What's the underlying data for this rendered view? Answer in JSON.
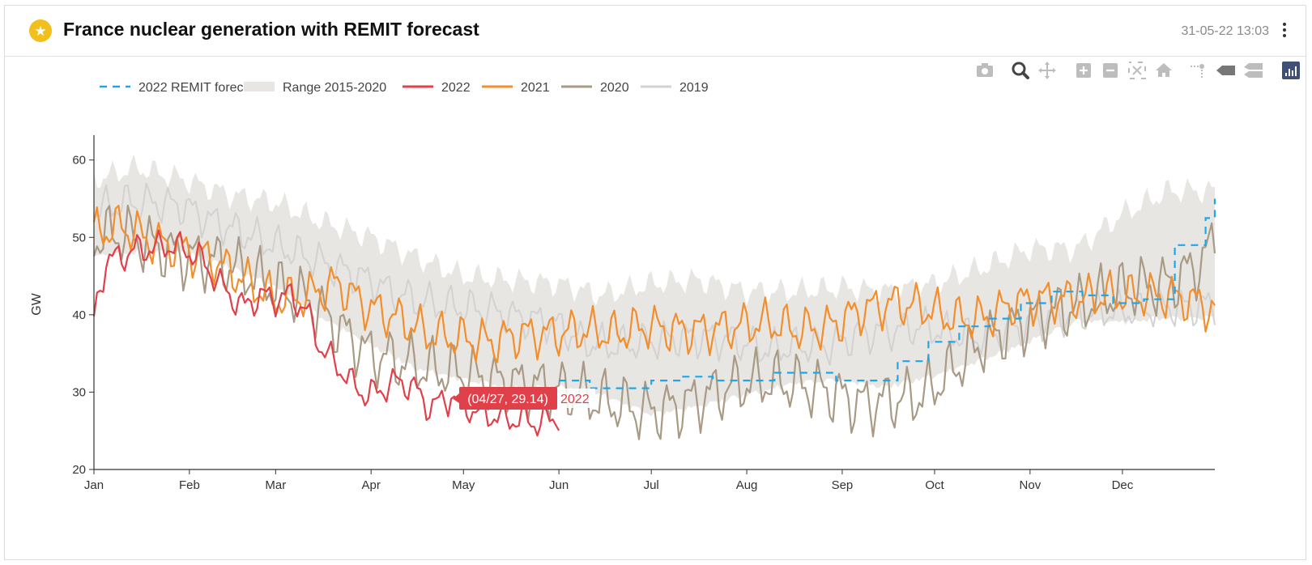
{
  "header": {
    "icon": "star-icon",
    "title": "France nuclear generation with REMIT forecast",
    "timestamp": "31-05-22 13:03",
    "menu_icon": "more-vertical-icon"
  },
  "modebar": {
    "buttons": [
      {
        "name": "camera-icon",
        "label": "Download plot as a png"
      },
      {
        "name": "zoom-icon",
        "label": "Zoom",
        "active": true
      },
      {
        "name": "pan-icon",
        "label": "Pan"
      },
      {
        "name": "zoom-in-icon",
        "label": "Zoom in"
      },
      {
        "name": "zoom-out-icon",
        "label": "Zoom out"
      },
      {
        "name": "autoscale-icon",
        "label": "Autoscale"
      },
      {
        "name": "home-icon",
        "label": "Reset axes"
      },
      {
        "name": "spike-lines-icon",
        "label": "Toggle Spike Lines"
      },
      {
        "name": "hover-closest-icon",
        "label": "Show closest data on hover"
      },
      {
        "name": "hover-compare-icon",
        "label": "Compare data on hover"
      },
      {
        "name": "plotly-logo-icon",
        "label": "Produced with Plotly"
      }
    ]
  },
  "colors": {
    "forecast": "#1ea7e8",
    "range": "#e8e6e2",
    "y2022": "#e0404a",
    "y2021": "#f28e2b",
    "y2020": "#a89a85",
    "y2019": "#d2d2d2"
  },
  "chart_data": {
    "type": "line",
    "title": "France nuclear generation with REMIT forecast",
    "xlabel": "",
    "ylabel": "GW",
    "ylim": [
      20,
      63
    ],
    "xlim": [
      1,
      365
    ],
    "y_ticks": [
      20,
      30,
      40,
      50,
      60
    ],
    "x_tick_days": [
      1,
      32,
      60,
      91,
      121,
      152,
      182,
      213,
      244,
      274,
      305,
      335
    ],
    "x_tick_labels": [
      "Jan",
      "Feb",
      "Mar",
      "Apr",
      "May",
      "Jun",
      "Jul",
      "Aug",
      "Sep",
      "Oct",
      "Nov",
      "Dec"
    ],
    "legend_position": "top-left",
    "legend": [
      "2022 REMIT forecast",
      "Range 2015-2020",
      "2022",
      "2021",
      "2020",
      "2019"
    ],
    "hover": {
      "text": "(04/27, 29.14)",
      "series": "2022",
      "day": 117,
      "value": 29.14
    },
    "series": [
      {
        "name": "2022 REMIT forecast",
        "key": "forecast",
        "style": "dash",
        "x": [
          152,
          162,
          172,
          182,
          192,
          202,
          212,
          222,
          232,
          242,
          252,
          262,
          272,
          282,
          292,
          302,
          312,
          322,
          332,
          342,
          352,
          362,
          365
        ],
        "values": [
          31.5,
          30.5,
          30.5,
          31.5,
          32.0,
          31.5,
          31.5,
          32.5,
          32.5,
          31.5,
          31.5,
          34.0,
          36.5,
          38.5,
          39.5,
          41.5,
          43.0,
          42.5,
          41.5,
          42.0,
          49.0,
          52.5,
          55.0
        ]
      },
      {
        "name": "Range 2015-2020",
        "key": "range",
        "type": "band",
        "x": [
          1,
          15,
          30,
          45,
          60,
          75,
          91,
          105,
          121,
          136,
          152,
          166,
          182,
          197,
          213,
          228,
          244,
          258,
          274,
          289,
          305,
          320,
          335,
          350,
          365
        ],
        "upper": [
          57.5,
          59.0,
          57.5,
          55.5,
          54.5,
          52.0,
          50.0,
          47.5,
          45.0,
          44.5,
          44.0,
          42.5,
          44.0,
          44.5,
          43.0,
          43.0,
          43.5,
          43.0,
          44.0,
          46.0,
          48.5,
          48.5,
          53.0,
          56.0,
          56.0
        ],
        "lower": [
          48.0,
          48.5,
          48.5,
          46.5,
          44.0,
          40.0,
          36.5,
          33.5,
          32.0,
          31.0,
          31.0,
          30.0,
          27.5,
          28.5,
          30.0,
          31.5,
          32.0,
          31.0,
          32.5,
          34.5,
          37.0,
          39.5,
          39.5,
          40.0,
          40.0
        ]
      },
      {
        "name": "2022",
        "key": "y2022",
        "x": [
          1,
          5,
          10,
          15,
          20,
          25,
          30,
          35,
          40,
          45,
          50,
          55,
          60,
          65,
          70,
          75,
          80,
          85,
          90,
          95,
          100,
          105,
          110,
          115,
          117,
          120,
          125,
          130,
          135,
          140,
          145,
          150,
          152
        ],
        "values": [
          39.8,
          47.0,
          47.5,
          48.5,
          48.5,
          49.0,
          48.5,
          47.5,
          45.0,
          42.5,
          41.0,
          42.5,
          42.0,
          42.5,
          40.5,
          35.5,
          33.5,
          31.0,
          29.5,
          30.5,
          31.5,
          30.5,
          28.0,
          29.0,
          29.14,
          28.5,
          27.5,
          27.0,
          26.5,
          26.5,
          26.0,
          26.5,
          27.0
        ]
      },
      {
        "name": "2021",
        "key": "y2021",
        "x": [
          1,
          10,
          20,
          30,
          40,
          50,
          60,
          70,
          80,
          90,
          100,
          110,
          120,
          130,
          140,
          150,
          160,
          170,
          180,
          190,
          200,
          210,
          220,
          230,
          240,
          250,
          260,
          270,
          280,
          290,
          300,
          310,
          320,
          330,
          340,
          350,
          360,
          365
        ],
        "values": [
          50.5,
          51.5,
          49.5,
          48.5,
          47.0,
          44.5,
          42.0,
          42.5,
          44.0,
          41.0,
          39.5,
          37.5,
          37.0,
          36.5,
          37.5,
          37.5,
          38.0,
          37.5,
          38.5,
          38.0,
          38.0,
          38.5,
          39.0,
          38.0,
          38.5,
          40.5,
          41.5,
          41.0,
          39.5,
          39.5,
          41.5,
          42.0,
          42.0,
          42.5,
          42.5,
          42.5,
          41.5,
          40.5
        ]
      },
      {
        "name": "2020",
        "key": "y2020",
        "x": [
          1,
          10,
          20,
          30,
          40,
          50,
          60,
          70,
          80,
          90,
          100,
          110,
          120,
          130,
          140,
          150,
          160,
          170,
          180,
          190,
          200,
          210,
          220,
          230,
          240,
          250,
          260,
          270,
          280,
          290,
          300,
          310,
          320,
          330,
          340,
          350,
          360,
          365
        ],
        "values": [
          50.0,
          50.5,
          49.0,
          47.5,
          47.0,
          45.5,
          43.5,
          42.0,
          38.5,
          35.0,
          34.0,
          33.0,
          32.5,
          31.5,
          31.0,
          30.5,
          29.5,
          28.5,
          27.5,
          28.0,
          29.5,
          31.0,
          31.5,
          31.0,
          30.0,
          28.5,
          29.0,
          29.5,
          33.0,
          36.5,
          38.5,
          40.0,
          41.0,
          42.5,
          43.5,
          44.0,
          46.5,
          49.5
        ]
      },
      {
        "name": "2019",
        "key": "y2019",
        "x": [
          1,
          10,
          20,
          30,
          40,
          50,
          60,
          70,
          80,
          90,
          100,
          110,
          120,
          130,
          140,
          150,
          160,
          170,
          180,
          190,
          200,
          210,
          220,
          230,
          240,
          250,
          260,
          270,
          280,
          290,
          300,
          310,
          320,
          330,
          340,
          350,
          360,
          365
        ],
        "values": [
          53.5,
          54.5,
          54.5,
          54.0,
          52.0,
          50.5,
          49.0,
          47.5,
          46.0,
          44.5,
          42.5,
          41.5,
          41.0,
          40.5,
          39.5,
          39.0,
          36.5,
          36.0,
          36.5,
          37.0,
          37.0,
          36.5,
          35.5,
          36.0,
          36.0,
          37.5,
          38.0,
          38.5,
          37.5,
          37.0,
          38.0,
          39.5,
          40.0,
          40.5,
          40.5,
          41.0,
          41.0,
          41.5
        ]
      }
    ]
  }
}
